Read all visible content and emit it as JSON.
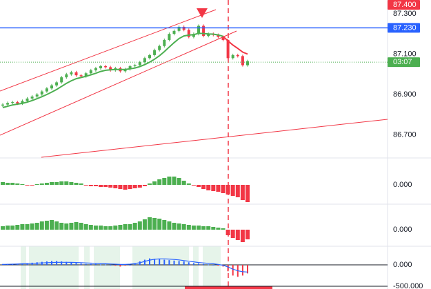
{
  "chart_data": [
    {
      "type": "candlestick",
      "up_color": "#4caf50",
      "down_color": "#f23645",
      "ylim": [
        86.589,
        87.368
      ],
      "yticks": [
        {
          "value": 87.3,
          "label": "87.300"
        },
        {
          "value": 87.1,
          "label": "87.100"
        },
        {
          "value": 86.9,
          "label": "86.900"
        },
        {
          "value": 86.7,
          "label": "86.700"
        }
      ],
      "open": [
        86.845,
        86.85,
        86.858,
        86.862,
        86.855,
        86.868,
        86.88,
        86.89,
        86.9,
        86.915,
        86.93,
        86.945,
        86.96,
        86.985,
        87.0,
        87.01,
        86.995,
        86.99,
        87.005,
        87.02,
        87.03,
        87.04,
        87.035,
        87.02,
        87.03,
        87.015,
        87.025,
        87.04,
        87.045,
        87.06,
        87.08,
        87.095,
        87.12,
        87.14,
        87.17,
        87.2,
        87.215,
        87.235,
        87.22,
        87.185,
        87.2,
        87.24,
        87.19,
        87.2,
        87.195,
        87.185,
        87.17,
        87.08,
        87.095,
        87.09,
        87.045
      ],
      "high": [
        86.857,
        86.865,
        86.869,
        86.869,
        86.875,
        86.887,
        86.897,
        86.907,
        86.922,
        86.937,
        86.952,
        86.967,
        86.992,
        87.007,
        87.017,
        87.017,
        87.002,
        87.012,
        87.027,
        87.037,
        87.047,
        87.047,
        87.042,
        87.037,
        87.037,
        87.032,
        87.047,
        87.052,
        87.067,
        87.087,
        87.102,
        87.127,
        87.147,
        87.177,
        87.207,
        87.222,
        87.242,
        87.242,
        87.227,
        87.207,
        87.247,
        87.247,
        87.207,
        87.207,
        87.202,
        87.192,
        87.177,
        87.102,
        87.102,
        87.097,
        87.072
      ],
      "low": [
        86.838,
        86.843,
        86.851,
        86.848,
        86.848,
        86.861,
        86.873,
        86.883,
        86.893,
        86.908,
        86.923,
        86.938,
        86.953,
        86.978,
        86.993,
        86.988,
        86.983,
        86.983,
        86.998,
        87.013,
        87.023,
        87.028,
        87.013,
        87.013,
        87.008,
        87.008,
        87.018,
        87.033,
        87.038,
        87.053,
        87.073,
        87.088,
        87.113,
        87.133,
        87.163,
        87.193,
        87.208,
        87.213,
        87.178,
        87.178,
        87.193,
        87.183,
        87.183,
        87.188,
        87.178,
        87.163,
        87.073,
        87.073,
        87.083,
        87.038,
        87.038
      ],
      "close": [
        86.85,
        86.858,
        86.862,
        86.855,
        86.868,
        86.88,
        86.89,
        86.9,
        86.915,
        86.93,
        86.945,
        86.96,
        86.985,
        87.0,
        87.01,
        86.995,
        86.99,
        87.005,
        87.02,
        87.03,
        87.04,
        87.035,
        87.02,
        87.03,
        87.015,
        87.025,
        87.04,
        87.045,
        87.06,
        87.08,
        87.095,
        87.12,
        87.14,
        87.17,
        87.2,
        87.215,
        87.235,
        87.22,
        87.185,
        87.2,
        87.24,
        87.19,
        87.2,
        87.195,
        87.185,
        87.17,
        87.08,
        87.095,
        87.09,
        87.045,
        87.065
      ],
      "series": [
        {
          "color": "#4caf50",
          "values": [
            86.835,
            86.842,
            86.848,
            86.852,
            86.856,
            86.862,
            86.87,
            86.879,
            86.889,
            86.9,
            86.912,
            86.925,
            86.94,
            86.955,
            86.968,
            86.978,
            86.984,
            86.99,
            86.997,
            87.005,
            87.014,
            87.02,
            87.022,
            87.024,
            87.024,
            87.024,
            87.027,
            87.031,
            87.038,
            87.048,
            87.06,
            87.075,
            87.092,
            87.112,
            87.135,
            87.157,
            87.177,
            87.19,
            87.194,
            87.196,
            87.203,
            87.202,
            87.2,
            87.199,
            87.195,
            87.188,
            null,
            null,
            null,
            null,
            null
          ]
        },
        {
          "color": "#f23645",
          "values": [
            null,
            null,
            null,
            null,
            null,
            null,
            null,
            null,
            null,
            null,
            null,
            null,
            null,
            null,
            null,
            null,
            null,
            null,
            null,
            null,
            null,
            null,
            null,
            null,
            null,
            null,
            null,
            null,
            null,
            null,
            null,
            null,
            null,
            null,
            null,
            null,
            null,
            null,
            null,
            null,
            null,
            null,
            null,
            null,
            null,
            87.188,
            87.165,
            87.145,
            87.128,
            87.11,
            87.1
          ]
        }
      ],
      "level": {
        "value": 87.23,
        "label": "87.230",
        "color": "#2962ff"
      },
      "price_line": {
        "value": 87.06,
        "label": "03:07",
        "color": "#4caf50"
      },
      "alert": {
        "value": 87.4,
        "label": "87.400",
        "color": "#f23645"
      }
    },
    {
      "type": "histogram",
      "up_color": "#4caf50",
      "down_color": "#f23645",
      "ylim": [
        -28,
        39
      ],
      "yticks": [
        {
          "value": 0,
          "label": "0.000"
        }
      ],
      "values": [
        4,
        3,
        3,
        2,
        1,
        -1,
        -1,
        1,
        2,
        3,
        4,
        4,
        5,
        5,
        4,
        3,
        2,
        -1,
        -2,
        -2,
        -3,
        -3,
        -4,
        -5,
        -6,
        -7,
        -6,
        -5,
        -4,
        -2,
        2,
        5,
        8,
        10,
        12,
        12,
        10,
        6,
        2,
        -1,
        -3,
        -6,
        -8,
        -9,
        -10,
        -12,
        -14,
        -16,
        -18,
        -22,
        -25
      ]
    },
    {
      "type": "histogram",
      "up_color": "#4caf50",
      "down_color": "#f23645",
      "ylim": [
        -24,
        37
      ],
      "yticks": [
        {
          "value": 0,
          "label": "0.000"
        }
      ],
      "values": [
        5,
        6,
        6,
        7,
        8,
        8,
        9,
        10,
        12,
        13,
        14,
        12,
        10,
        9,
        10,
        11,
        10,
        8,
        7,
        6,
        6,
        5,
        5,
        6,
        7,
        8,
        8,
        10,
        12,
        15,
        18,
        17,
        16,
        14,
        12,
        10,
        9,
        8,
        7,
        6,
        6,
        5,
        5,
        4,
        3,
        2,
        -8,
        -12,
        -15,
        -18,
        -14
      ]
    },
    {
      "type": "oscillator",
      "up_color": "#2962ff",
      "down_color": "#f23645",
      "ylim": [
        -565,
        435
      ],
      "yticks": [
        {
          "value": 0,
          "label": "0.000"
        },
        {
          "value": -500,
          "label": "-500.000"
        }
      ],
      "values": [
        20,
        20,
        20,
        20,
        30,
        40,
        50,
        60,
        70,
        80,
        90,
        90,
        80,
        70,
        60,
        40,
        30,
        20,
        20,
        20,
        10,
        10,
        0,
        -20,
        -40,
        -20,
        0,
        40,
        80,
        120,
        150,
        140,
        130,
        120,
        110,
        100,
        90,
        80,
        60,
        40,
        30,
        20,
        10,
        0,
        -20,
        -40,
        -150,
        -250,
        -280,
        -250,
        -200
      ],
      "line": {
        "color": "#2962ff",
        "values": [
          10,
          12,
          15,
          20,
          25,
          30,
          35,
          40,
          45,
          50,
          55,
          58,
          60,
          60,
          58,
          55,
          50,
          45,
          40,
          35,
          30,
          25,
          20,
          15,
          10,
          10,
          15,
          30,
          50,
          80,
          110,
          130,
          140,
          140,
          135,
          125,
          115,
          100,
          85,
          70,
          55,
          45,
          35,
          25,
          10,
          -10,
          -50,
          -100,
          -140,
          -160,
          -170
        ]
      }
    }
  ]
}
